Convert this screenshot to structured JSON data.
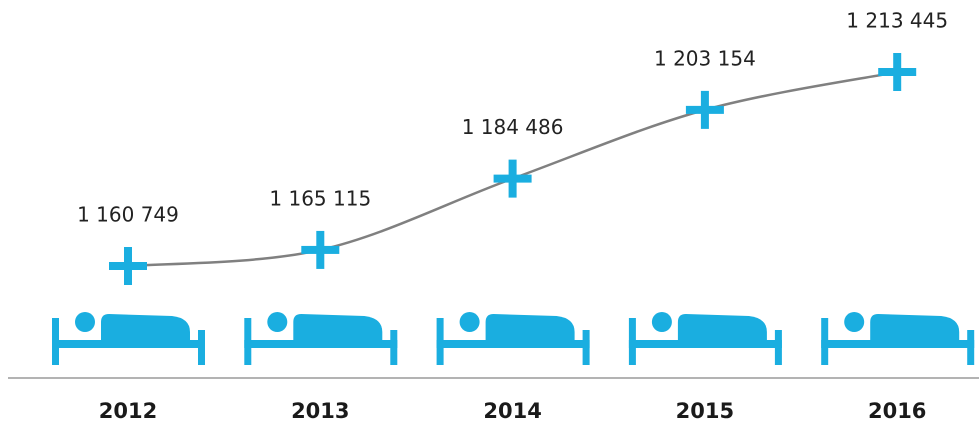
{
  "chart_data": {
    "type": "line",
    "categories": [
      "2012",
      "2013",
      "2014",
      "2015",
      "2016"
    ],
    "values": [
      1160749,
      1165115,
      1184486,
      1203154,
      1213445
    ],
    "value_labels": [
      "1 160 749",
      "1 165 115",
      "1 184 486",
      "1 203 154",
      "1 213 445"
    ],
    "color": "#1aaee0",
    "line_color": "#808080"
  }
}
